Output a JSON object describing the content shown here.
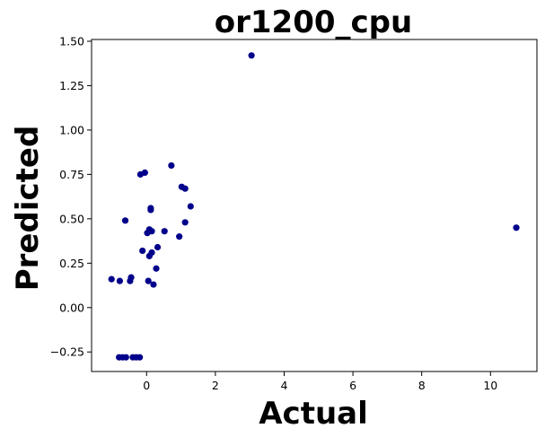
{
  "chart_data": {
    "type": "scatter",
    "title": "or1200_cpu",
    "xlabel": "Actual",
    "ylabel": "Predicted",
    "xlim": [
      -1.6,
      11.35
    ],
    "ylim": [
      -0.36,
      1.51
    ],
    "xticks": [
      0,
      2,
      4,
      6,
      8,
      10
    ],
    "xtick_labels": [
      "0",
      "2",
      "4",
      "6",
      "8",
      "10"
    ],
    "yticks": [
      -0.25,
      0.0,
      0.25,
      0.5,
      0.75,
      1.0,
      1.25,
      1.5
    ],
    "ytick_labels": [
      "−0.25",
      "0.00",
      "0.25",
      "0.50",
      "0.75",
      "1.00",
      "1.25",
      "1.50"
    ],
    "grid": false,
    "marker_color": "#00008b",
    "series": [
      {
        "name": "points",
        "x": [
          3.05,
          10.75,
          0.72,
          -0.05,
          -0.18,
          1.02,
          1.12,
          0.12,
          0.12,
          1.28,
          -0.62,
          0.15,
          0.52,
          0.08,
          0.02,
          1.12,
          0.95,
          0.32,
          -0.12,
          0.15,
          0.08,
          0.28,
          -1.02,
          -0.45,
          -0.48,
          -0.78,
          0.05,
          0.2,
          -0.8,
          -0.7,
          -0.6,
          -0.4,
          -0.3,
          -0.2
        ],
        "y": [
          1.42,
          0.45,
          0.8,
          0.76,
          0.75,
          0.68,
          0.67,
          0.56,
          0.55,
          0.57,
          0.49,
          0.43,
          0.43,
          0.44,
          0.42,
          0.48,
          0.4,
          0.34,
          0.32,
          0.31,
          0.29,
          0.22,
          0.16,
          0.17,
          0.15,
          0.15,
          0.15,
          0.13,
          -0.28,
          -0.28,
          -0.28,
          -0.28,
          -0.28,
          -0.28
        ]
      }
    ]
  }
}
